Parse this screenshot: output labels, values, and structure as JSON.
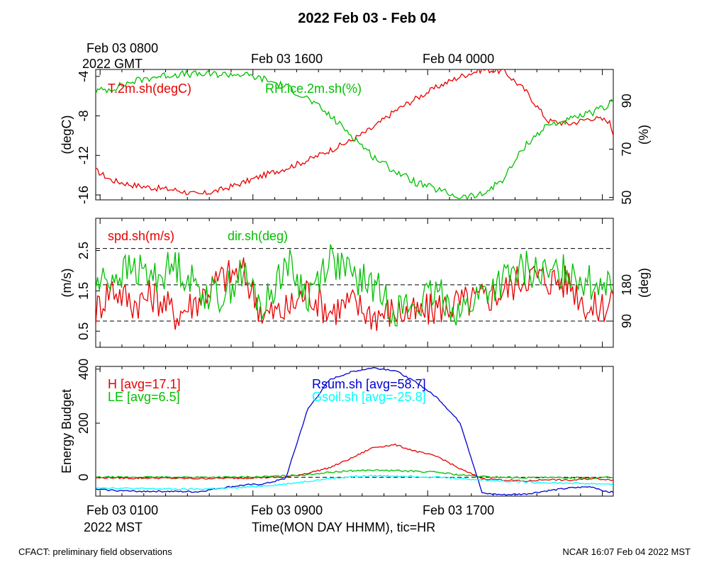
{
  "chart_data": [
    {
      "type": "line",
      "title": "2022 Feb 03 - Feb 04",
      "top_axis": {
        "labels": [
          "Feb 03 0800",
          "Feb 03 1600",
          "Feb 04 0000"
        ],
        "first_label_year": "2022 GMT"
      },
      "x": {
        "label": "Time(MON DAY HHMM), tic=HR",
        "start_hour": 0.8,
        "end_hour": 24.5
      },
      "panels": [
        {
          "name": "temperature-humidity",
          "ylabel_left": "(degC)",
          "ylabel_right": "(%)",
          "ylim_left": [
            -16.5,
            -3.3
          ],
          "ylim_right": [
            49,
            103
          ],
          "left_ticks": [
            "-4",
            "-8",
            "-12",
            "-16"
          ],
          "right_ticks": [
            "90",
            "70",
            "50"
          ],
          "series": [
            {
              "name": "T.2m.sh(degC)",
              "color": "#e80000",
              "axis": "left",
              "x": [
                0.8,
                1.5,
                2.5,
                3.5,
                4.5,
                5.5,
                6.5,
                7.5,
                8.5,
                9.5,
                10.5,
                11.5,
                12.5,
                13.5,
                14.5,
                15.5,
                16.5,
                17.5,
                18.5,
                19.5,
                20.5,
                21.5,
                22.5,
                23.5,
                24.3,
                24.5
              ],
              "values": [
                -13.5,
                -14.5,
                -15.0,
                -15.3,
                -15.5,
                -16.0,
                -15.5,
                -14.8,
                -14.0,
                -13.3,
                -12.5,
                -11.5,
                -10.5,
                -9.2,
                -7.5,
                -6.2,
                -5.0,
                -4.0,
                -3.3,
                -3.5,
                -5.5,
                -8.5,
                -8.8,
                -8.2,
                -8.5,
                -9.8
              ]
            },
            {
              "name": "RH.ice.2m.sh(%)",
              "color": "#00c000",
              "axis": "right",
              "x": [
                0.8,
                1.5,
                2.5,
                3.5,
                4.5,
                5.5,
                6.5,
                7.5,
                8.5,
                9.5,
                10.5,
                11.5,
                12.5,
                13.5,
                14.5,
                15.5,
                16.5,
                17.5,
                18.5,
                19.5,
                20.5,
                21.5,
                22.5,
                23.5,
                24.3,
                24.5
              ],
              "values": [
                94,
                95,
                98,
                100,
                101,
                101,
                101,
                101,
                99,
                96,
                91,
                84,
                76,
                67,
                61,
                56,
                53,
                50,
                51,
                58,
                72,
                80,
                82,
                85,
                88,
                91
              ]
            }
          ]
        },
        {
          "name": "wind",
          "ylabel_left": "(m/s)",
          "ylabel_right": "(deg)",
          "ylim_left": [
            0.1,
            3.3
          ],
          "ylim_right": [
            25,
            345
          ],
          "left_ticks": [
            "2.5",
            "1.5",
            "0.5"
          ],
          "right_ticks": [
            "180",
            "90"
          ],
          "reference_lines_deg": [
            90,
            180,
            270
          ],
          "series": [
            {
              "name": "spd.sh(m/s)",
              "color": "#e80000",
              "axis": "left",
              "x": [
                0.8,
                1.5,
                2.5,
                3.5,
                4.5,
                5.5,
                6.5,
                7.5,
                8.5,
                9.5,
                10.5,
                11.5,
                12.5,
                13.5,
                14.5,
                15.5,
                16.5,
                17.5,
                18.5,
                19.5,
                20.5,
                21.5,
                22.5,
                23.5,
                24.3,
                24.5
              ],
              "values": [
                1.0,
                1.6,
                1.2,
                1.4,
                0.9,
                1.3,
                1.8,
                2.0,
                0.9,
                1.0,
                1.5,
                1.0,
                1.2,
                0.9,
                1.0,
                0.9,
                1.1,
                1.2,
                1.3,
                1.5,
                1.9,
                1.8,
                1.7,
                1.0,
                1.2,
                1.5
              ]
            },
            {
              "name": "dir.sh(deg)",
              "color": "#00c000",
              "axis": "right",
              "x": [
                0.8,
                1.5,
                2.5,
                3.5,
                4.5,
                5.5,
                6.5,
                7.5,
                8.5,
                9.5,
                10.5,
                11.5,
                12.5,
                13.5,
                14.5,
                15.5,
                16.5,
                17.5,
                18.5,
                19.5,
                20.5,
                21.5,
                22.5,
                23.5,
                24.3,
                24.5
              ],
              "values": [
                180,
                200,
                220,
                200,
                230,
                170,
                150,
                210,
                120,
                240,
                150,
                250,
                200,
                180,
                120,
                130,
                160,
                110,
                160,
                190,
                220,
                200,
                220,
                180,
                200,
                190
              ]
            }
          ]
        },
        {
          "name": "energy-budget",
          "ylabel_left": "Energy Budget",
          "ylim_left": [
            -70,
            410
          ],
          "left_ticks": [
            "400",
            "200",
            "0"
          ],
          "reference_lines": [
            0
          ],
          "series": [
            {
              "name": "H",
              "legend": "H [avg=17.1]",
              "color": "#e80000",
              "x": [
                0.8,
                1.5,
                2.5,
                3.5,
                4.5,
                5.5,
                6.5,
                7.5,
                8.5,
                9.5,
                10.5,
                11.5,
                12.5,
                13.5,
                14.5,
                15.5,
                16.5,
                17.5,
                18.5,
                19.5,
                20.5,
                21.5,
                22.5,
                23.5,
                24.3,
                24.5
              ],
              "values": [
                -3,
                -2,
                -4,
                -3,
                -4,
                -5,
                -4,
                -3,
                -1,
                0,
                15,
                35,
                70,
                110,
                120,
                95,
                75,
                30,
                -5,
                -10,
                -15,
                -8,
                -12,
                -5,
                -8,
                -10
              ]
            },
            {
              "name": "LE",
              "legend": "LE [avg=6.5]",
              "color": "#00c000",
              "x": [
                0.8,
                1.5,
                2.5,
                3.5,
                4.5,
                5.5,
                6.5,
                7.5,
                8.5,
                9.5,
                10.5,
                11.5,
                12.5,
                13.5,
                14.5,
                15.5,
                16.5,
                17.5,
                18.5,
                19.5,
                20.5,
                21.5,
                22.5,
                23.5,
                24.3,
                24.5
              ],
              "values": [
                0,
                0,
                0,
                0,
                0,
                0,
                0,
                0,
                2,
                5,
                10,
                18,
                24,
                26,
                24,
                22,
                18,
                8,
                2,
                0,
                -2,
                -2,
                -2,
                -1,
                -1,
                -1
              ]
            },
            {
              "name": "Rsum.sh",
              "legend": "Rsum.sh [avg=58.7]",
              "color": "#0000d0",
              "x": [
                0.8,
                1.5,
                2.5,
                3.5,
                4.5,
                5.5,
                6.5,
                7.5,
                8.5,
                9.5,
                10.5,
                11.5,
                12.5,
                13.5,
                14.5,
                15.5,
                16.5,
                17.5,
                18.5,
                19.5,
                20.5,
                21.5,
                22.5,
                23.5,
                24.3,
                24.5
              ],
              "values": [
                -45,
                -48,
                -52,
                -52,
                -53,
                -54,
                -40,
                -30,
                -25,
                -5,
                250,
                360,
                390,
                405,
                395,
                350,
                290,
                200,
                -60,
                -65,
                -62,
                -50,
                -40,
                -35,
                -55,
                -55
              ]
            },
            {
              "name": "Gsoil.sh",
              "legend": "Gsoil.sh [avg=-25.8]",
              "color": "#00ffff",
              "x": [
                0.8,
                1.5,
                2.5,
                3.5,
                4.5,
                5.5,
                6.5,
                7.5,
                8.5,
                9.5,
                10.5,
                11.5,
                12.5,
                13.5,
                14.5,
                15.5,
                16.5,
                17.5,
                18.5,
                19.5,
                20.5,
                21.5,
                22.5,
                23.5,
                24.3,
                24.5
              ],
              "values": [
                -38,
                -40,
                -42,
                -43,
                -44,
                -44,
                -42,
                -38,
                -32,
                -25,
                -15,
                -5,
                2,
                5,
                5,
                3,
                0,
                -5,
                -10,
                -14,
                -18,
                -20,
                -22,
                -24,
                -25,
                -26
              ]
            }
          ]
        }
      ],
      "bottom_axis": {
        "labels": [
          "Feb 03 0100",
          "Feb 03 0900",
          "Feb 03 1700"
        ],
        "first_label_year": "2022 MST"
      }
    }
  ],
  "footer": {
    "left": "CFACT: preliminary field observations",
    "right": "NCAR 16:07 Feb 04 2022 MST"
  }
}
